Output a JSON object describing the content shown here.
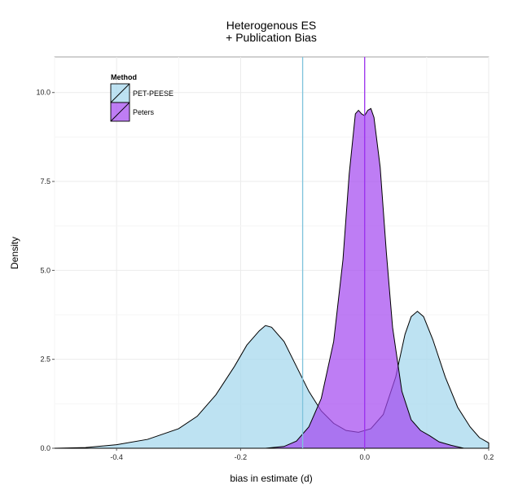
{
  "chart_data": {
    "type": "area",
    "title_lines": [
      "Heterogenous ES",
      "+ Publication Bias"
    ],
    "xlabel": "bias in estimate (d)",
    "ylabel": "Density",
    "xlim": [
      -0.5,
      0.2
    ],
    "ylim": [
      0,
      11
    ],
    "x_ticks": [
      -0.4,
      -0.2,
      0.0,
      0.2
    ],
    "x_tick_labels": [
      "-0.4",
      "-0.2",
      "0.0",
      "0.2"
    ],
    "y_ticks": [
      0,
      2.5,
      5,
      7.5,
      10
    ],
    "y_tick_labels": [
      "0.0",
      "2.5",
      "5.0",
      "7.5",
      "10.0"
    ],
    "grid": true,
    "legend": {
      "title": "Method",
      "position": "top-left",
      "entries": [
        "PET-PEESE",
        "Peters"
      ]
    },
    "series": [
      {
        "name": "PET-PEESE",
        "color": "#a7d8ee",
        "mean_line": -0.1,
        "mean_line_color": "#7fc3dc",
        "points": [
          [
            -0.5,
            0.0
          ],
          [
            -0.45,
            0.02
          ],
          [
            -0.4,
            0.1
          ],
          [
            -0.35,
            0.25
          ],
          [
            -0.3,
            0.55
          ],
          [
            -0.27,
            0.9
          ],
          [
            -0.24,
            1.5
          ],
          [
            -0.21,
            2.3
          ],
          [
            -0.19,
            2.9
          ],
          [
            -0.17,
            3.3
          ],
          [
            -0.16,
            3.45
          ],
          [
            -0.15,
            3.4
          ],
          [
            -0.13,
            3.0
          ],
          [
            -0.11,
            2.3
          ],
          [
            -0.09,
            1.6
          ],
          [
            -0.07,
            1.05
          ],
          [
            -0.05,
            0.7
          ],
          [
            -0.03,
            0.5
          ],
          [
            -0.01,
            0.45
          ],
          [
            0.01,
            0.55
          ],
          [
            0.03,
            0.95
          ],
          [
            0.05,
            2.0
          ],
          [
            0.065,
            3.2
          ],
          [
            0.075,
            3.7
          ],
          [
            0.085,
            3.85
          ],
          [
            0.095,
            3.7
          ],
          [
            0.11,
            3.05
          ],
          [
            0.13,
            2.0
          ],
          [
            0.15,
            1.15
          ],
          [
            0.17,
            0.6
          ],
          [
            0.185,
            0.3
          ],
          [
            0.2,
            0.15
          ]
        ]
      },
      {
        "name": "Peters",
        "color": "#a346f0",
        "mean_line": 0.0,
        "mean_line_color": "#9b30ee",
        "points": [
          [
            -0.16,
            0.0
          ],
          [
            -0.13,
            0.05
          ],
          [
            -0.11,
            0.2
          ],
          [
            -0.09,
            0.6
          ],
          [
            -0.07,
            1.4
          ],
          [
            -0.05,
            3.0
          ],
          [
            -0.035,
            5.3
          ],
          [
            -0.025,
            7.7
          ],
          [
            -0.015,
            9.4
          ],
          [
            -0.01,
            9.5
          ],
          [
            -0.005,
            9.4
          ],
          [
            0.0,
            9.35
          ],
          [
            0.005,
            9.5
          ],
          [
            0.01,
            9.55
          ],
          [
            0.015,
            9.3
          ],
          [
            0.025,
            7.9
          ],
          [
            0.035,
            5.5
          ],
          [
            0.045,
            3.4
          ],
          [
            0.06,
            1.6
          ],
          [
            0.075,
            0.8
          ],
          [
            0.09,
            0.5
          ],
          [
            0.105,
            0.35
          ],
          [
            0.12,
            0.18
          ],
          [
            0.14,
            0.08
          ],
          [
            0.16,
            0.0
          ]
        ]
      }
    ]
  }
}
